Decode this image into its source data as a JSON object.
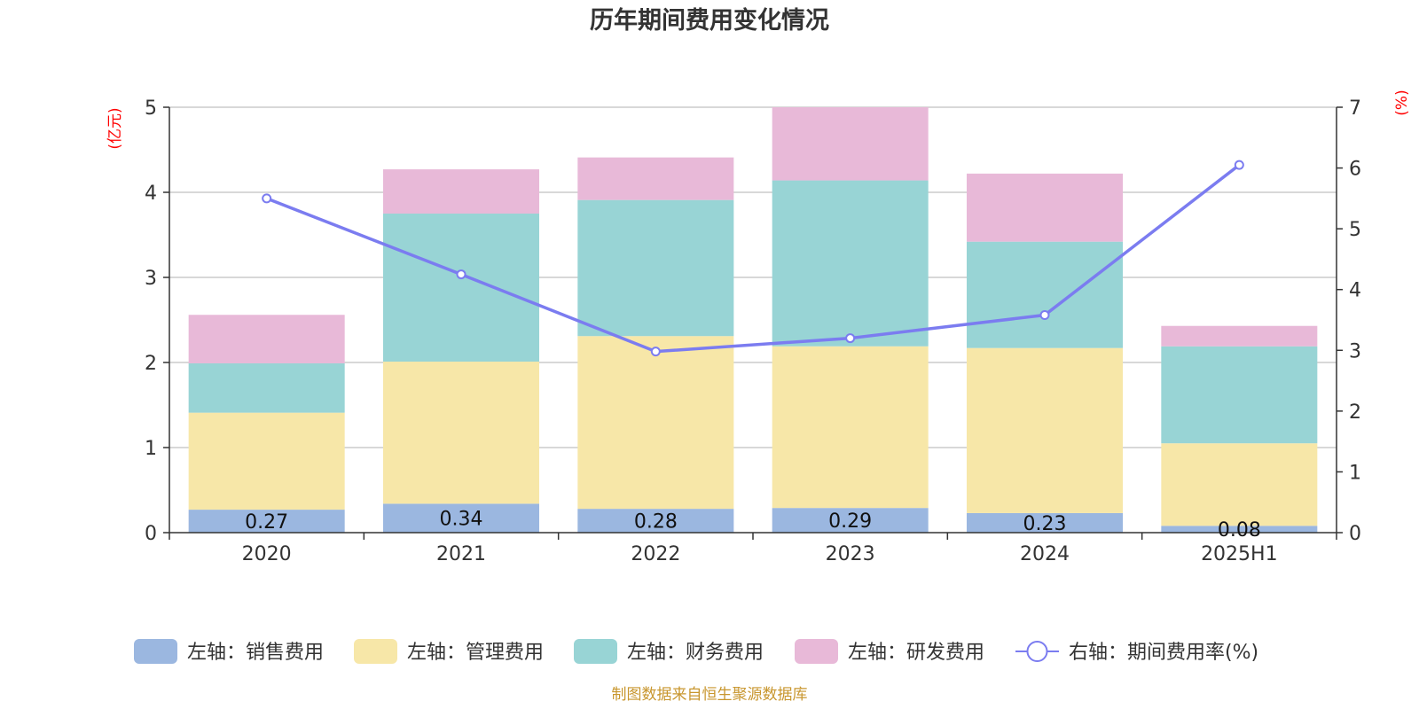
{
  "chart_data": {
    "type": "bar",
    "title": "历年期间费用变化情况",
    "categories": [
      "2020",
      "2021",
      "2022",
      "2023",
      "2024",
      "2025H1"
    ],
    "left_axis": {
      "unit": "(亿元)",
      "ylim": [
        0,
        5
      ],
      "ticks": [
        "0",
        "1",
        "2",
        "3",
        "4",
        "5"
      ]
    },
    "right_axis": {
      "unit": "(%)",
      "ylim": [
        0,
        7
      ],
      "ticks": [
        "0",
        "1",
        "2",
        "3",
        "4",
        "5",
        "6",
        "7"
      ]
    },
    "stacked": true,
    "grid": true,
    "legend_position": "bottom",
    "series": [
      {
        "name": "左轴：销售费用",
        "type": "bar",
        "axis": "left",
        "color": "#9bb7e0",
        "values": [
          0.27,
          0.34,
          0.28,
          0.29,
          0.23,
          0.08
        ],
        "labels": [
          "0.27",
          "0.34",
          "0.28",
          "0.29",
          "0.23",
          "0.08"
        ]
      },
      {
        "name": "左轴：管理费用",
        "type": "bar",
        "axis": "left",
        "color": "#f7e7a8",
        "values": [
          1.14,
          1.67,
          2.03,
          1.9,
          1.94,
          0.97
        ]
      },
      {
        "name": "左轴：财务费用",
        "type": "bar",
        "axis": "left",
        "color": "#98d4d5",
        "values": [
          0.58,
          1.74,
          1.6,
          1.95,
          1.25,
          1.14
        ]
      },
      {
        "name": "左轴：研发费用",
        "type": "bar",
        "axis": "left",
        "color": "#e8b9d8",
        "values": [
          0.57,
          0.52,
          0.5,
          0.86,
          0.8,
          0.24
        ]
      },
      {
        "name": "右轴：期间费用率(%)",
        "type": "line",
        "axis": "right",
        "color": "#7b7cf0",
        "values": [
          5.5,
          4.25,
          2.98,
          3.2,
          3.58,
          6.05
        ]
      }
    ],
    "source": "制图数据来自恒生聚源数据库"
  }
}
